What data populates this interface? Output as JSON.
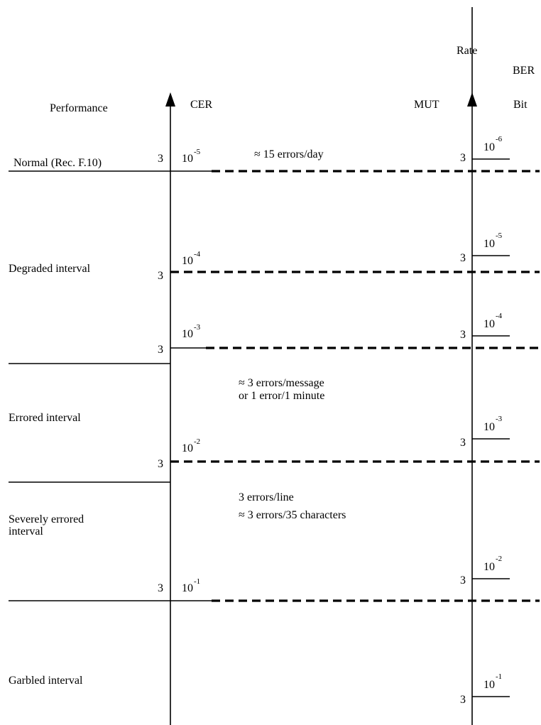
{
  "headers": {
    "performance": "Performance",
    "cer": "CER",
    "mut": "MUT",
    "rate": "Rate",
    "ber": "BER",
    "bit": "Bit"
  },
  "performance_levels": [
    "Normal (Rec. F.10)",
    "Degraded interval",
    "Errored interval",
    "Severely errored",
    "interval",
    "Garbled interval"
  ],
  "cer_ticks": [
    {
      "mult": "3",
      "base": "10",
      "exp": "-5"
    },
    {
      "mult": "3",
      "base": "10",
      "exp": "-4"
    },
    {
      "mult": "3",
      "base": "10",
      "exp": "-3"
    },
    {
      "mult": "3",
      "base": "10",
      "exp": "-2"
    },
    {
      "mult": "3",
      "base": "10",
      "exp": "-1"
    }
  ],
  "ber_ticks": [
    {
      "mult": "3",
      "base": "10",
      "exp": "-6"
    },
    {
      "mult": "3",
      "base": "10",
      "exp": "-5"
    },
    {
      "mult": "3",
      "base": "10",
      "exp": "-4"
    },
    {
      "mult": "3",
      "base": "10",
      "exp": "-3"
    },
    {
      "mult": "3",
      "base": "10",
      "exp": "-2"
    },
    {
      "mult": "3",
      "base": "10",
      "exp": "-1"
    }
  ],
  "annotations": [
    "≈ 15 errors/day",
    "≈ 3 errors/message",
    "or 1 error/1 minute",
    "3 errors/line",
    "≈ 3 errors/35 characters"
  ]
}
